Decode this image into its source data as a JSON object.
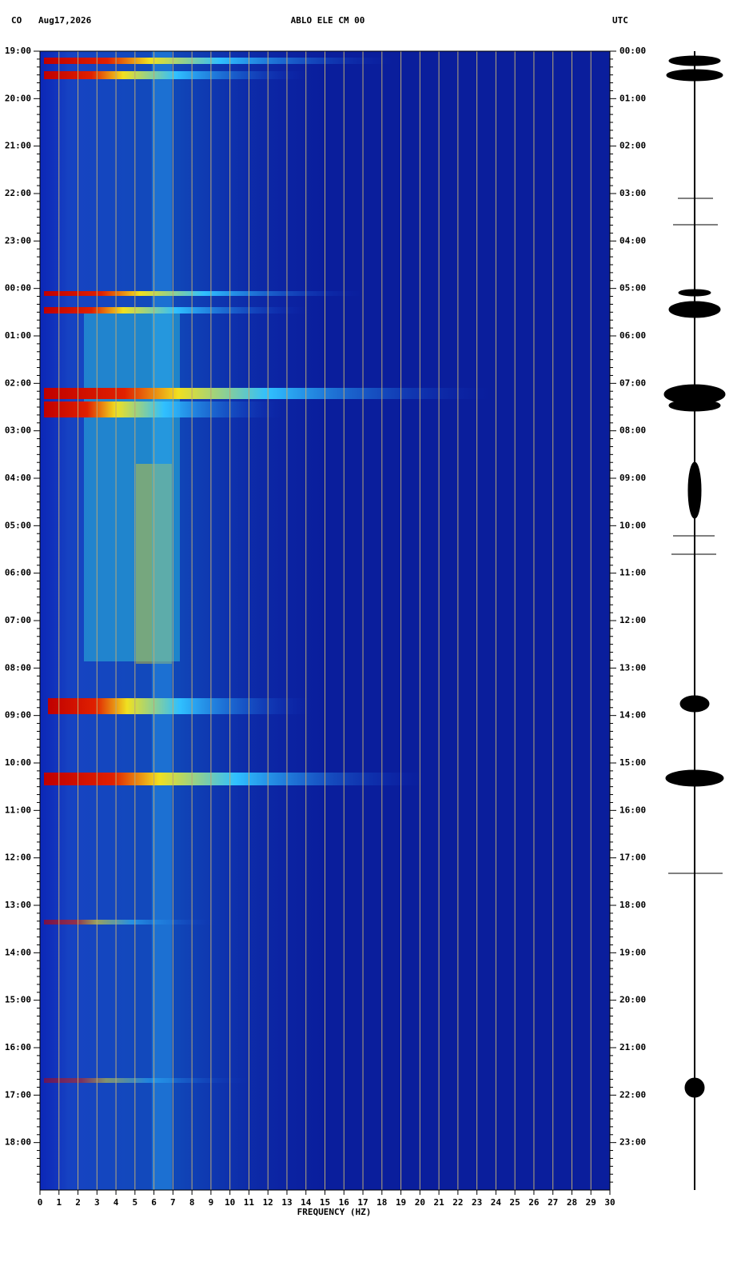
{
  "chart_data": {
    "type": "spectrogram",
    "station_code": "CO",
    "date": "Aug17,2026",
    "title": "ABLO ELE CM 00",
    "timezone": "UTC",
    "xlabel": "FREQUENCY (HZ)",
    "xlim": [
      0,
      30
    ],
    "xticks": [
      0,
      1,
      2,
      3,
      4,
      5,
      6,
      7,
      8,
      9,
      10,
      11,
      12,
      13,
      14,
      15,
      16,
      17,
      18,
      19,
      20,
      21,
      22,
      23,
      24,
      25,
      26,
      27,
      28,
      29,
      30
    ],
    "left_time_labels": [
      "19:00",
      "20:00",
      "21:00",
      "22:00",
      "23:00",
      "00:00",
      "01:00",
      "02:00",
      "03:00",
      "04:00",
      "05:00",
      "06:00",
      "07:00",
      "08:00",
      "09:00",
      "10:00",
      "11:00",
      "12:00",
      "13:00",
      "14:00",
      "15:00",
      "16:00",
      "17:00",
      "18:00"
    ],
    "right_time_labels": [
      "00:00",
      "01:00",
      "02:00",
      "03:00",
      "04:00",
      "05:00",
      "06:00",
      "07:00",
      "08:00",
      "09:00",
      "10:00",
      "11:00",
      "12:00",
      "13:00",
      "14:00",
      "15:00",
      "16:00",
      "17:00",
      "18:00",
      "19:00",
      "20:00",
      "21:00",
      "22:00",
      "23:00"
    ],
    "grid": true
  }
}
